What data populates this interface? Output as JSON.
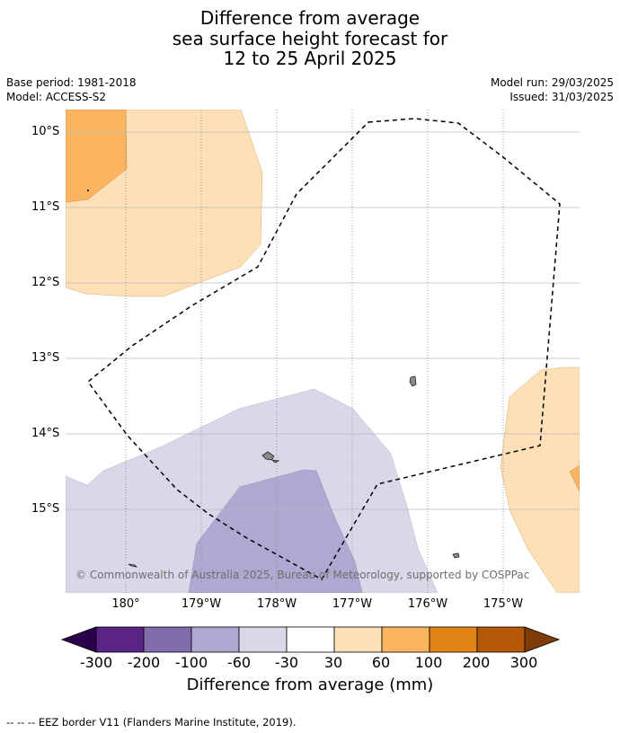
{
  "title": {
    "line1": "Difference from average",
    "line2": "sea surface height forecast for",
    "line3": "12 to 25 April 2025"
  },
  "meta": {
    "base_period": "Base period: 1981-2018",
    "model": "Model: ACCESS-S2",
    "model_run": "Model run: 29/03/2025",
    "issued": "Issued: 31/03/2025"
  },
  "map": {
    "lat_labels": [
      "10°S",
      "11°S",
      "12°S",
      "13°S",
      "14°S",
      "15°S"
    ],
    "lon_labels": [
      "180°",
      "179°W",
      "178°W",
      "177°W",
      "176°W",
      "175°W"
    ],
    "copyright": "© Commonwealth of Australia 2025, Bureau of Meteorology, supported by COSPPac"
  },
  "colorbar": {
    "ticks": [
      "-300",
      "-200",
      "-100",
      "-60",
      "-30",
      "30",
      "60",
      "100",
      "200",
      "300"
    ],
    "colors": [
      "#5a2386",
      "#7f6eaa",
      "#afa8d0",
      "#d8d8e9",
      "#ffffff",
      "#fde0b6",
      "#fbb560",
      "#e08214",
      "#b35806"
    ],
    "extend_low": "#2d004b",
    "extend_high": "#7f3b08",
    "label": "Difference from average (mm)"
  },
  "footer": "--  --  -- EEZ border V11 (Flanders Marine Institute, 2019)."
}
